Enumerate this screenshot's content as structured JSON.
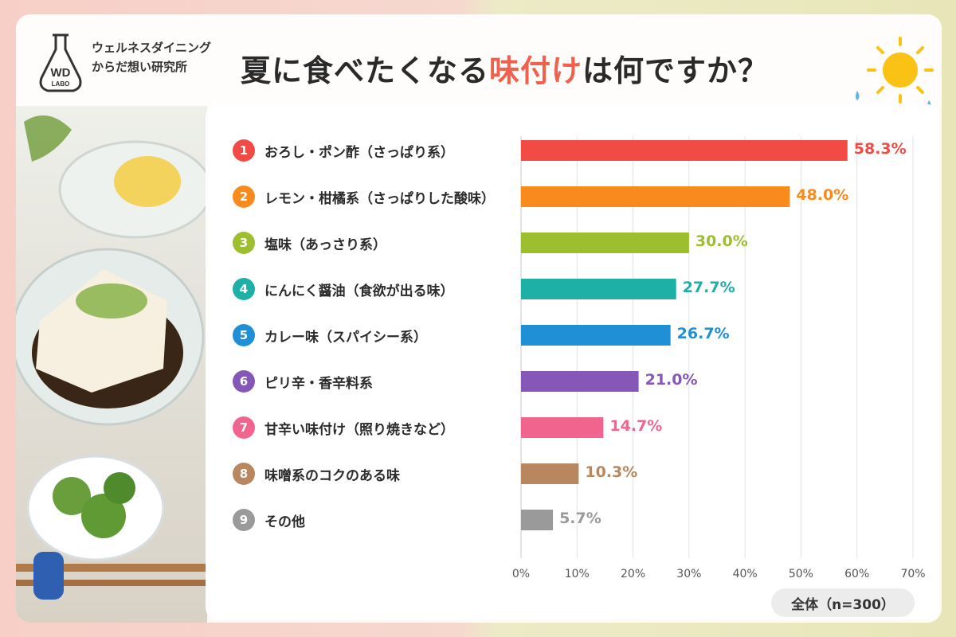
{
  "header": {
    "brand_line1": "ウェルネスダイニング",
    "brand_line2": "からだ想い研究所",
    "logo_top": "WD",
    "logo_bottom": "LABO",
    "title_part1": "夏に食べたくなる",
    "title_highlight": "味付け",
    "title_part2": "は何ですか？"
  },
  "colors": {
    "highlight": "#f0604d",
    "bar_colors": [
      "#f24a44",
      "#f98b1c",
      "#9dbe2f",
      "#1eafa6",
      "#1f8fd6",
      "#8558b8",
      "#f0648d",
      "#b8875f",
      "#9a9a9a"
    ]
  },
  "chart_data": {
    "type": "bar",
    "orientation": "horizontal",
    "categories": [
      "おろし・ポン酢（さっぱり系）",
      "レモン・柑橘系（さっぱりした酸味）",
      "塩味（あっさり系）",
      "にんにく醤油（食欲が出る味）",
      "カレー味（スパイシー系）",
      "ピリ辛・香辛料系",
      "甘辛い味付け（照り焼きなど）",
      "味噌系のコクのある味",
      "その他"
    ],
    "ranks": [
      "1",
      "2",
      "3",
      "4",
      "5",
      "6",
      "7",
      "8",
      "9"
    ],
    "values": [
      58.3,
      48.0,
      30.0,
      27.7,
      26.7,
      21.0,
      14.7,
      10.3,
      5.7
    ],
    "value_labels": [
      "58.3%",
      "48.0%",
      "30.0%",
      "27.7%",
      "26.7%",
      "21.0%",
      "14.7%",
      "10.3%",
      "5.7%"
    ],
    "xlim": [
      0,
      70
    ],
    "ticks": [
      "0%",
      "10%",
      "20%",
      "30%",
      "40%",
      "50%",
      "60%",
      "70%"
    ],
    "grid": true,
    "note": "全体（n=300）"
  }
}
